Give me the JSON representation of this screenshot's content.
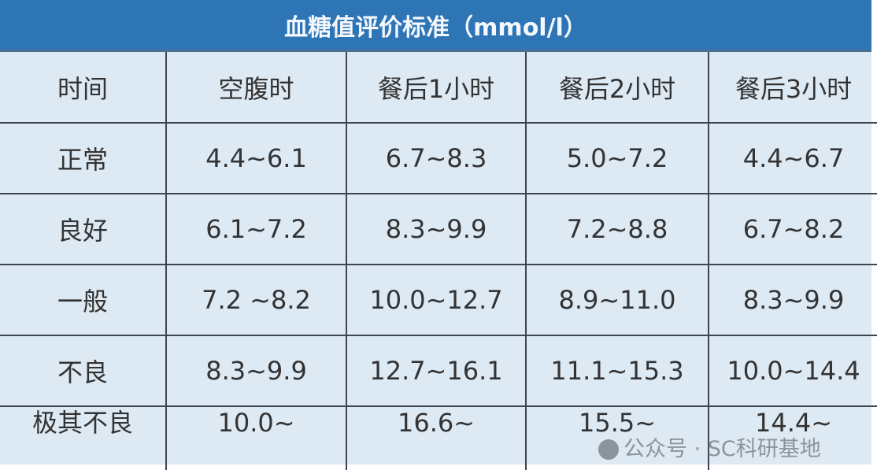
{
  "title": "血糖值评价标准（mmol/l）",
  "table": {
    "headers": [
      "时间",
      "空腹时",
      "餐后1小时",
      "餐后2小时",
      "餐后3小时"
    ],
    "rows": [
      [
        "正常",
        "4.4~6.1",
        "6.7~8.3",
        "5.0~7.2",
        "4.4~6.7"
      ],
      [
        "良好",
        "6.1~7.2",
        "8.3~9.9",
        "7.2~8.8",
        "6.7~8.2"
      ],
      [
        "一般",
        "7.2 ~8.2",
        "10.0~12.7",
        "8.9~11.0",
        "8.3~9.9"
      ],
      [
        "不良",
        "8.3~9.9",
        "12.7~16.1",
        "11.1~15.3",
        "10.0~14.4"
      ],
      [
        "极其不良",
        "10.0~",
        "16.6~",
        "15.5~",
        "14.4~"
      ]
    ]
  },
  "watermark": "公众号 · SC科研基地",
  "colors": {
    "header": "#2e75b6",
    "background": "#dde9f3"
  }
}
